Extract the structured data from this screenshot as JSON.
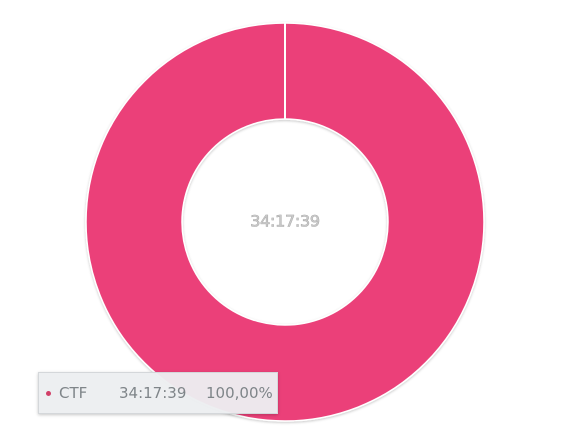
{
  "chart_data": {
    "type": "pie",
    "variant": "donut",
    "categories": [
      "CTF"
    ],
    "values": [
      100
    ],
    "labels": [
      "34:17:39"
    ],
    "center_text": "34:17:39",
    "colors": [
      "#eb4079"
    ],
    "legend": "tooltip bottom-left"
  },
  "tooltip": {
    "category": "CTF",
    "value": "34:17:39",
    "percent": "100,00%"
  }
}
